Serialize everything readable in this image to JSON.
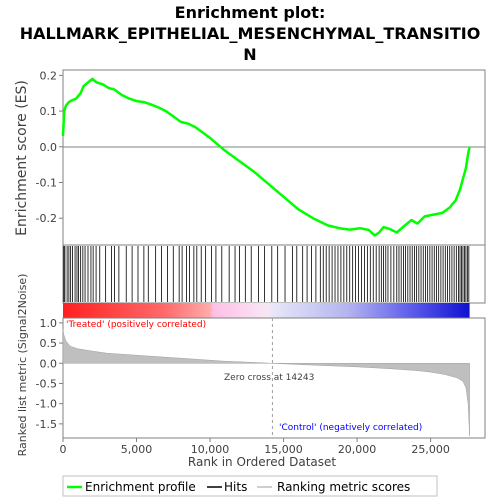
{
  "chart_data": {
    "type": "line",
    "title_lines": [
      "Enrichment plot:",
      "HALLMARK_EPITHELIAL_MESENCHYMAL_TRANSITIO",
      "N"
    ],
    "top_panel": {
      "ylabel": "Enrichment score (ES)",
      "ylim": [
        -0.275,
        0.215
      ],
      "yticks": [
        0.2,
        0.1,
        0.0,
        -0.1,
        -0.2
      ],
      "ytick_labels": [
        "0.2",
        "0.1",
        "0.0",
        "-0.1",
        "-0.2"
      ],
      "series": [
        {
          "name": "Enrichment profile",
          "color": "#00ff00",
          "x": [
            0,
            80,
            200,
            400,
            600,
            900,
            1200,
            1400,
            1700,
            2000,
            2300,
            2700,
            3100,
            3500,
            4000,
            4500,
            5000,
            5500,
            6000,
            6500,
            7000,
            7500,
            8000,
            8500,
            9000,
            9500,
            10000,
            11000,
            12000,
            13000,
            14000,
            15000,
            16000,
            17000,
            18000,
            18800,
            19500,
            20200,
            20800,
            21200,
            21500,
            21800,
            22200,
            22700,
            23200,
            23700,
            24100,
            24600,
            25200,
            25800,
            26300,
            26700,
            27000,
            27200,
            27400,
            27550,
            27650
          ],
          "y": [
            0.03,
            0.1,
            0.115,
            0.125,
            0.13,
            0.135,
            0.15,
            0.17,
            0.18,
            0.19,
            0.18,
            0.175,
            0.165,
            0.16,
            0.145,
            0.135,
            0.128,
            0.125,
            0.118,
            0.11,
            0.1,
            0.085,
            0.07,
            0.065,
            0.055,
            0.04,
            0.025,
            -0.01,
            -0.04,
            -0.07,
            -0.105,
            -0.14,
            -0.175,
            -0.2,
            -0.22,
            -0.228,
            -0.232,
            -0.228,
            -0.233,
            -0.248,
            -0.24,
            -0.225,
            -0.23,
            -0.24,
            -0.222,
            -0.205,
            -0.215,
            -0.195,
            -0.19,
            -0.185,
            -0.17,
            -0.15,
            -0.12,
            -0.09,
            -0.06,
            -0.02,
            0.0
          ]
        }
      ]
    },
    "hits_panel": {
      "legend_label": "Hits",
      "hit_ranks": [
        60,
        130,
        280,
        400,
        520,
        650,
        820,
        950,
        1050,
        1200,
        1350,
        1500,
        1700,
        1900,
        2050,
        2250,
        2500,
        2900,
        3300,
        3500,
        3800,
        4300,
        4700,
        5100,
        5500,
        5800,
        6300,
        6700,
        7100,
        7500,
        7900,
        8100,
        8400,
        8600,
        8900,
        9100,
        9400,
        9700,
        10100,
        10400,
        10800,
        11300,
        11700,
        12000,
        12400,
        12800,
        13300,
        13700,
        14200,
        14600,
        15100,
        15600,
        15900,
        16300,
        16600,
        16900,
        17200,
        17500,
        17700,
        17900,
        18100,
        18300,
        18500,
        18700,
        18900,
        19100,
        19300,
        19500,
        19700,
        19900,
        20100,
        20300,
        20500,
        20700,
        20900,
        21100,
        21300,
        21500,
        21650,
        21800,
        21950,
        22100,
        22300,
        22500,
        22700,
        22850,
        23000,
        23150,
        23300,
        23450,
        23600,
        23750,
        23900,
        24050,
        24200,
        24350,
        24500,
        24650,
        24800,
        24950,
        25100,
        25250,
        25400,
        25550,
        25700,
        25850,
        26000,
        26150,
        26300,
        26450,
        26600,
        26750,
        26900,
        27000,
        27100,
        27200,
        27300,
        27400,
        27500,
        27600
      ]
    },
    "ranked_list_panel": {
      "ylabel": "Ranked list metric (Signal2Noise)",
      "ylim": [
        -1.85,
        1.12
      ],
      "yticks": [
        1.0,
        0.5,
        0.0,
        -0.5,
        -1.0,
        -1.5
      ],
      "ytick_labels": [
        "1.0",
        "0.5",
        "0.0",
        "-0.5",
        "-1.0",
        "-1.5"
      ],
      "series": [
        {
          "name": "Ranking metric scores",
          "color": "#bfbfbf",
          "x": [
            0,
            50,
            200,
            500,
            1000,
            2000,
            3000,
            5000,
            7000,
            9000,
            11000,
            13000,
            14243,
            16000,
            18000,
            20000,
            22000,
            24000,
            25000,
            26000,
            26800,
            27200,
            27400,
            27550,
            27650
          ],
          "y": [
            0.85,
            0.72,
            0.55,
            0.42,
            0.36,
            0.3,
            0.25,
            0.2,
            0.15,
            0.1,
            0.05,
            0.02,
            0.0,
            -0.03,
            -0.06,
            -0.09,
            -0.13,
            -0.18,
            -0.22,
            -0.28,
            -0.36,
            -0.45,
            -0.6,
            -1.0,
            -1.8
          ]
        }
      ],
      "annotations": {
        "treated_label": "'Treated' (positively correlated)",
        "treated_color": "#ff0000",
        "control_label": "'Control' (negatively correlated)",
        "control_color": "#0000ff",
        "zero_cross_label": "Zero cross at 14243",
        "zero_cross_rank": 14243
      }
    },
    "xaxis": {
      "xlabel": "Rank in Ordered Dataset",
      "xlim": [
        0,
        28700
      ],
      "xticks": [
        0,
        5000,
        10000,
        15000,
        20000,
        25000
      ],
      "xtick_labels": [
        "0",
        "5,000",
        "10,000",
        "15,000",
        "20,000",
        "25,000"
      ],
      "n_genes": 27650
    },
    "legend": {
      "placement": "bottom",
      "items": [
        {
          "label": "Enrichment profile",
          "color": "#00ff00"
        },
        {
          "label": "Hits",
          "color": "#000000"
        },
        {
          "label": "Ranking metric scores",
          "color": "#bfbfbf"
        }
      ]
    },
    "grid": false
  }
}
